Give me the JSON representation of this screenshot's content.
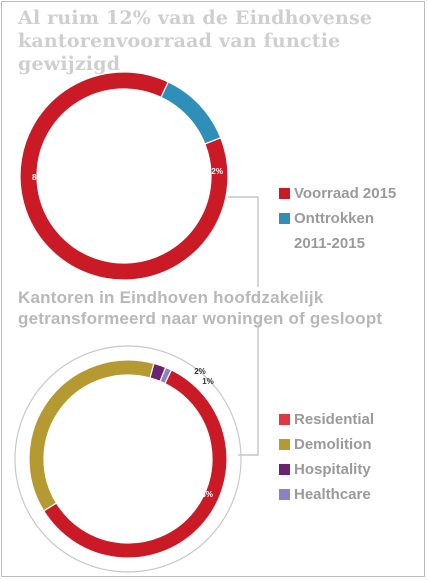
{
  "titles": {
    "top": "Al ruim 12% van de Eindhovense kantorenvoorraad van functie gewijzigd",
    "bottom": "Kantoren in Eindhoven hoofdzakelijk getransformeerd naar woningen of gesloopt"
  },
  "chart_data": [
    {
      "type": "pie",
      "title": "Al ruim 12% van de Eindhovense kantorenvoorraad van functie gewijzigd",
      "categories": [
        "Voorraad 2015",
        "Onttrokken 2011-2015"
      ],
      "values": [
        88,
        12
      ],
      "labels": [
        "88%",
        "12%"
      ],
      "colors": [
        "#c91a26",
        "#2f8fb8"
      ],
      "legend_position": "right",
      "style": "donut"
    },
    {
      "type": "pie",
      "title": "Kantoren in Eindhoven hoofdzakelijk getransformeerd naar woningen of gesloopt",
      "categories": [
        "Residential",
        "Demolition",
        "Hospitality",
        "Healthcare"
      ],
      "values": [
        59,
        38,
        2,
        1
      ],
      "labels": [
        "59%",
        "38%",
        "2%",
        "1%"
      ],
      "colors": [
        "#c91a26",
        "#b59a32",
        "#6b2270",
        "#8b82c4"
      ],
      "legend_position": "right",
      "style": "donut"
    }
  ],
  "legend": {
    "top": [
      {
        "label": "Voorraad 2015",
        "color": "#c91a26"
      },
      {
        "label": "Onttrokken",
        "label2": "2011-2015",
        "color": "#2f8fb8"
      }
    ],
    "bottom": [
      {
        "label": "Residential",
        "color": "#e0383e"
      },
      {
        "label": "Demolition",
        "color": "#b59a32"
      },
      {
        "label": "Hospitality",
        "color": "#6b2270"
      },
      {
        "label": "Healthcare",
        "color": "#8b82c4"
      }
    ]
  }
}
